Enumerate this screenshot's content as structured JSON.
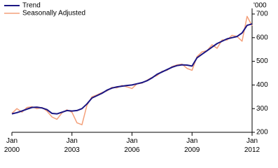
{
  "chart_data": {
    "type": "line",
    "y_unit": "'000",
    "x": [
      2000,
      2000.25,
      2000.5,
      2000.75,
      2001,
      2001.25,
      2001.5,
      2001.75,
      2002,
      2002.25,
      2002.5,
      2002.75,
      2003,
      2003.25,
      2003.5,
      2003.75,
      2004,
      2004.25,
      2004.5,
      2004.75,
      2005,
      2005.25,
      2005.5,
      2005.75,
      2006,
      2006.25,
      2006.5,
      2006.75,
      2007,
      2007.25,
      2007.5,
      2007.75,
      2008,
      2008.25,
      2008.5,
      2008.75,
      2009,
      2009.25,
      2009.5,
      2009.75,
      2010,
      2010.25,
      2010.5,
      2010.75,
      2011,
      2011.25,
      2011.5,
      2011.75,
      2012
    ],
    "series": [
      {
        "name": "Trend",
        "color": "#1b1683",
        "width": 2,
        "values": [
          278,
          283,
          290,
          298,
          305,
          306,
          303,
          296,
          280,
          278,
          285,
          292,
          290,
          292,
          300,
          320,
          345,
          355,
          365,
          378,
          387,
          392,
          395,
          398,
          400,
          405,
          410,
          418,
          430,
          445,
          455,
          465,
          475,
          482,
          485,
          484,
          480,
          515,
          530,
          545,
          560,
          575,
          585,
          595,
          600,
          605,
          620,
          652,
          658
        ]
      },
      {
        "name": "Seasonally Adjusted",
        "color": "#f4a07a",
        "width": 1.5,
        "values": [
          280,
          300,
          285,
          305,
          308,
          300,
          305,
          290,
          265,
          255,
          282,
          295,
          285,
          240,
          232,
          315,
          350,
          358,
          368,
          375,
          390,
          388,
          398,
          392,
          385,
          405,
          408,
          420,
          432,
          440,
          458,
          462,
          478,
          485,
          488,
          470,
          462,
          520,
          540,
          545,
          570,
          555,
          590,
          590,
          610,
          605,
          585,
          690,
          650
        ]
      }
    ],
    "xlim": [
      2000,
      2012
    ],
    "xticks": [
      {
        "value": 2000,
        "label": "Jan 2000"
      },
      {
        "value": 2003,
        "label": "Jan 2003"
      },
      {
        "value": 2006,
        "label": "Jan 2006"
      },
      {
        "value": 2009,
        "label": "Jan 2009"
      },
      {
        "value": 2012,
        "label": "Jan 2012"
      }
    ],
    "ylim": [
      200,
      700
    ],
    "yticks": [
      200,
      300,
      400,
      500,
      600,
      700
    ],
    "grid": false,
    "legend": "top-left"
  }
}
